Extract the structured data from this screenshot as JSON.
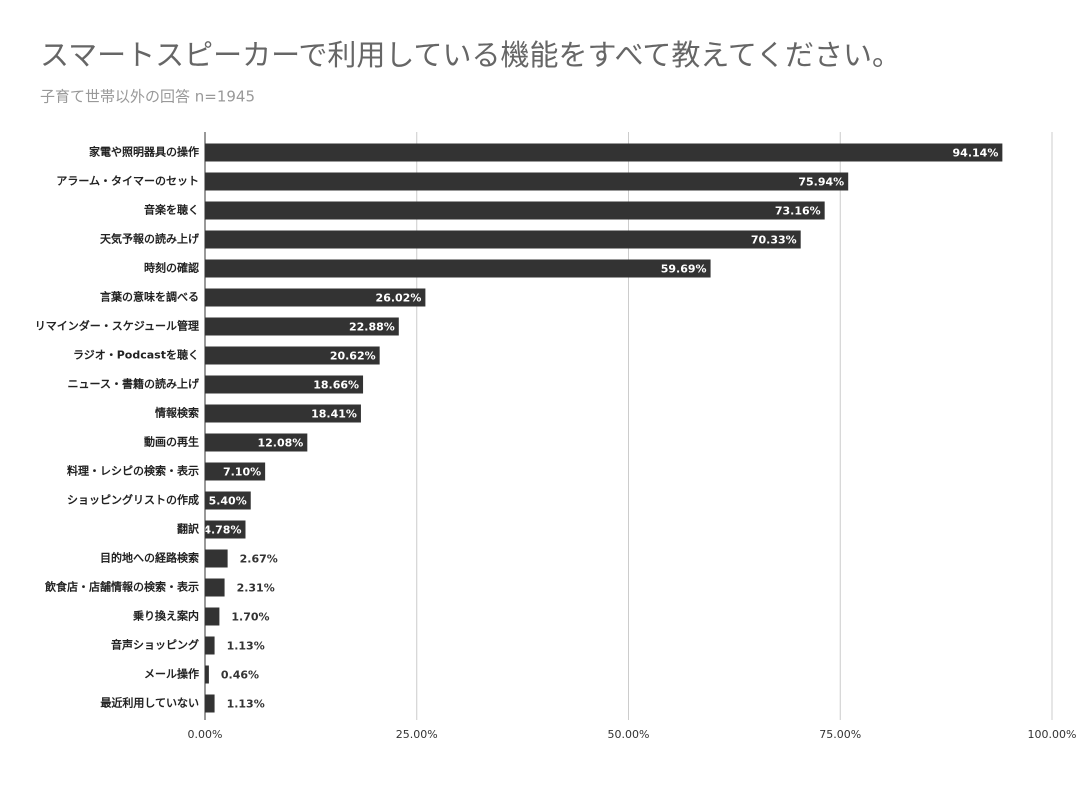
{
  "chart_data": {
    "type": "hbar",
    "title": "スマートスピーカーで利用している機能をすべて教えてください。",
    "subtitle": "子育て世帯以外の回答 n=1945",
    "categories": [
      "家電や照明器具の操作",
      "アラーム・タイマーのセット",
      "音楽を聴く",
      "天気予報の読み上げ",
      "時刻の確認",
      "言葉の意味を調べる",
      "リマインダー・スケジュール管理",
      "ラジオ・Podcastを聴く",
      "ニュース・書籍の読み上げ",
      "情報検索",
      "動画の再生",
      "料理・レシピの検索・表示",
      "ショッピングリストの作成",
      "翻訳",
      "目的地への経路検索",
      "飲食店・店舗情報の検索・表示",
      "乗り換え案内",
      "音声ショッピング",
      "メール操作",
      "最近利用していない"
    ],
    "values": [
      94.14,
      75.94,
      73.16,
      70.33,
      59.69,
      26.02,
      22.88,
      20.62,
      18.66,
      18.41,
      12.08,
      7.1,
      5.4,
      4.78,
      2.67,
      2.31,
      1.7,
      1.13,
      0.46,
      1.13
    ],
    "value_labels": [
      "94.14%",
      "75.94%",
      "73.16%",
      "70.33%",
      "59.69%",
      "26.02%",
      "22.88%",
      "20.62%",
      "18.66%",
      "18.41%",
      "12.08%",
      "7.10%",
      "5.40%",
      "4.78%",
      "2.67%",
      "2.31%",
      "1.70%",
      "1.13%",
      "0.46%",
      "1.13%"
    ],
    "color": "#333333",
    "xlim": [
      0,
      100
    ],
    "xticks": [
      {
        "value": 0,
        "label": "0.00%"
      },
      {
        "value": 25,
        "label": "25.00%"
      },
      {
        "value": 50,
        "label": "50.00%"
      },
      {
        "value": 75,
        "label": "75.00%"
      },
      {
        "value": 100,
        "label": "100.00%"
      }
    ],
    "grid": true
  }
}
